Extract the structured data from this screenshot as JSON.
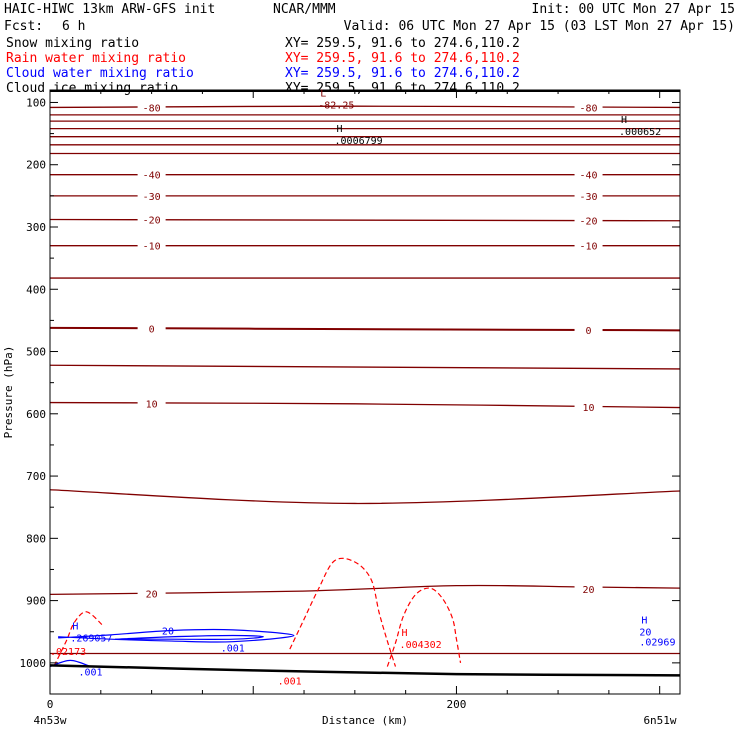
{
  "header": {
    "model": "HAIC-HIWC 13km ARW-GFS init",
    "org": "NCAR/MMM",
    "init": "Init: 00 UTC Mon 27 Apr 15",
    "fcst_label": "Fcst:",
    "fcst_value": "6 h",
    "valid": "Valid: 06 UTC Mon 27 Apr 15 (03 LST Mon 27 Apr 15)",
    "fields": [
      {
        "name": "Snow mixing ratio",
        "xy": "XY= 259.5, 91.6 to 274.6,110.2",
        "color": "#000000"
      },
      {
        "name": "Rain water mixing ratio",
        "xy": "XY= 259.5, 91.6 to 274.6,110.2",
        "color": "#ff0000"
      },
      {
        "name": "Cloud water mixing ratio",
        "xy": "XY= 259.5, 91.6 to 274.6,110.2",
        "color": "#0000ff"
      },
      {
        "name": "Cloud ice mixing ratio",
        "xy": "XY= 259.5, 91.6 to 274.6,110.2",
        "color": "#000000"
      }
    ]
  },
  "chart_data": {
    "type": "line",
    "title": "",
    "xlabel": "Distance (km)",
    "ylabel": "Pressure (hPa)",
    "xlim": [
      0,
      310
    ],
    "ylim": [
      1050,
      80
    ],
    "x_ticks": [
      0,
      200
    ],
    "y_ticks": [
      100,
      200,
      300,
      400,
      500,
      600,
      700,
      800,
      900,
      1000
    ],
    "y_tick_labels": [
      "100",
      "200",
      "300",
      "400",
      "500",
      "600",
      "700",
      "800",
      "900",
      "1000"
    ],
    "endpoints": {
      "left": "4n53w",
      "right": "6n51w"
    },
    "colors": {
      "temperature": "#800000",
      "rain": "#ff0000",
      "cloud_water": "#0000ff",
      "ground": "#000000"
    },
    "temperature_contours": [
      {
        "label": "-80",
        "points": [
          [
            0,
            108
          ],
          [
            150,
            106
          ],
          [
            310,
            108
          ]
        ]
      },
      {
        "label": "",
        "points": [
          [
            0,
            120
          ],
          [
            310,
            120
          ]
        ]
      },
      {
        "label": "",
        "points": [
          [
            0,
            130
          ],
          [
            310,
            130
          ]
        ]
      },
      {
        "label": "",
        "points": [
          [
            0,
            142
          ],
          [
            310,
            142
          ]
        ]
      },
      {
        "label": "",
        "points": [
          [
            0,
            155
          ],
          [
            310,
            155
          ]
        ]
      },
      {
        "label": "",
        "points": [
          [
            0,
            168
          ],
          [
            310,
            168
          ]
        ]
      },
      {
        "label": "",
        "points": [
          [
            0,
            182
          ],
          [
            310,
            182
          ]
        ]
      },
      {
        "label": "-40",
        "points": [
          [
            0,
            216
          ],
          [
            310,
            216
          ]
        ]
      },
      {
        "label": "-30",
        "points": [
          [
            0,
            250
          ],
          [
            310,
            250
          ]
        ]
      },
      {
        "label": "-20",
        "points": [
          [
            0,
            288
          ],
          [
            310,
            290
          ]
        ]
      },
      {
        "label": "-10",
        "points": [
          [
            0,
            330
          ],
          [
            310,
            330
          ]
        ]
      },
      {
        "label": "",
        "points": [
          [
            0,
            382
          ],
          [
            310,
            382
          ]
        ]
      },
      {
        "label": "0",
        "points": [
          [
            0,
            462
          ],
          [
            150,
            464
          ],
          [
            310,
            466
          ]
        ]
      },
      {
        "label": "",
        "points": [
          [
            0,
            522
          ],
          [
            310,
            528
          ]
        ]
      },
      {
        "label": "10",
        "points": [
          [
            0,
            582
          ],
          [
            150,
            584
          ],
          [
            310,
            590
          ]
        ]
      },
      {
        "label": "",
        "points": [
          [
            0,
            722
          ],
          [
            150,
            744
          ],
          [
            310,
            724
          ]
        ]
      },
      {
        "label": "20",
        "points": [
          [
            0,
            890
          ],
          [
            120,
            885
          ],
          [
            200,
            876
          ],
          [
            260,
            878
          ],
          [
            310,
            880
          ]
        ]
      },
      {
        "label": "",
        "points": [
          [
            0,
            985
          ],
          [
            310,
            985
          ]
        ]
      }
    ],
    "ground_pressure": {
      "points": [
        [
          0,
          1004
        ],
        [
          100,
          1012
        ],
        [
          200,
          1018
        ],
        [
          310,
          1020
        ]
      ]
    },
    "rain_contours": [
      {
        "label": "",
        "points": [
          [
            118,
            978
          ],
          [
            125,
            930
          ],
          [
            132,
            882
          ],
          [
            140,
            836
          ],
          [
            150,
            838
          ],
          [
            158,
            866
          ],
          [
            162,
            920
          ],
          [
            166,
            965
          ],
          [
            170,
            1006
          ]
        ]
      },
      {
        "label": "",
        "points": [
          [
            166,
            1006
          ],
          [
            170,
            968
          ],
          [
            174,
            924
          ],
          [
            180,
            890
          ],
          [
            187,
            880
          ],
          [
            193,
            896
          ],
          [
            198,
            928
          ],
          [
            200,
            962
          ],
          [
            202,
            1000
          ]
        ]
      },
      {
        "label": "",
        "points": [
          [
            2,
            1005
          ],
          [
            8,
            965
          ],
          [
            12,
            935
          ],
          [
            18,
            918
          ],
          [
            26,
            940
          ]
        ]
      }
    ],
    "cloud_water_contours": [
      {
        "label": "20",
        "points": [
          [
            4,
            960
          ],
          [
            30,
            955
          ],
          [
            60,
            948
          ],
          [
            90,
            947
          ],
          [
            120,
            956
          ],
          [
            90,
            966
          ],
          [
            60,
            965
          ],
          [
            30,
            962
          ],
          [
            4,
            958
          ]
        ]
      },
      {
        "label": "",
        "points": [
          [
            32,
            962
          ],
          [
            60,
            958
          ],
          [
            90,
            956
          ],
          [
            105,
            958
          ],
          [
            90,
            962
          ],
          [
            60,
            962
          ],
          [
            32,
            962
          ]
        ]
      },
      {
        "label": "",
        "points": [
          [
            0,
            1006
          ],
          [
            10,
            996
          ],
          [
            20,
            1006
          ]
        ]
      }
    ],
    "extrema": [
      {
        "type": "L",
        "value": "-82.25",
        "x": 132,
        "p": 103,
        "color": "#800000"
      },
      {
        "type": "H",
        "value": ".0006799",
        "x": 140,
        "p": 160,
        "color": "#000000"
      },
      {
        "type": "H",
        "value": ".000652",
        "x": 280,
        "p": 146,
        "color": "#000000"
      },
      {
        "type": "H",
        "value": ".004302",
        "x": 172,
        "p": 970,
        "color": "#ff0000"
      },
      {
        "type": "H",
        "value": ".269057",
        "x": 10,
        "p": 959,
        "color": "#0000ff"
      },
      {
        "type": "",
        "value": ".001",
        "x": 84,
        "p": 975,
        "color": "#0000ff"
      },
      {
        "type": "",
        "value": ".02173",
        "x": 0,
        "p": 981,
        "color": "#ff0000"
      },
      {
        "type": "",
        "value": ".001",
        "x": 14,
        "p": 1014,
        "color": "#0000ff"
      },
      {
        "type": "",
        "value": ".001",
        "x": 112,
        "p": 1028,
        "color": "#ff0000"
      },
      {
        "type": "H",
        "value": "20",
        "x": 290,
        "p": 950,
        "color": "#0000ff"
      },
      {
        "type": "",
        "value": ".02969",
        "x": 290,
        "p": 966,
        "color": "#0000ff"
      }
    ]
  }
}
